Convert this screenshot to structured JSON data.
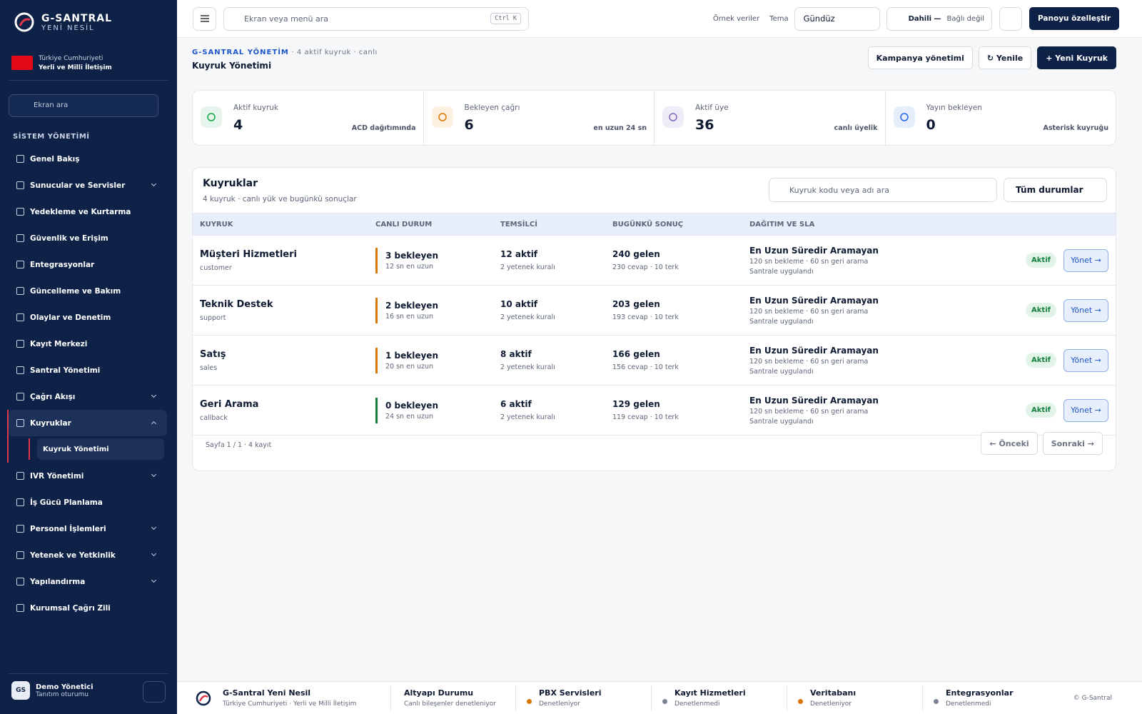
{
  "sidebar": {
    "brand": "G-SANTRAL",
    "brand_sub": "YENİ NESİL",
    "country": "Türkiye Cumhuriyeti",
    "motto": "Yerli ve Milli İletişim",
    "search_placeholder": "Ekran ara",
    "section": "SİSTEM YÖNETİMİ",
    "nav": [
      {
        "label": "Genel Bakış"
      },
      {
        "label": "Sunucular ve Servisler",
        "expandable": true
      },
      {
        "label": "Yedekleme ve Kurtarma"
      },
      {
        "label": "Güvenlik ve Erişim"
      },
      {
        "label": "Entegrasyonlar"
      },
      {
        "label": "Güncelleme ve Bakım"
      },
      {
        "label": "Olaylar ve Denetim"
      },
      {
        "label": "Kayıt Merkezi"
      },
      {
        "label": "Santral Yönetimi"
      },
      {
        "label": "Çağrı Akışı",
        "expandable": true
      },
      {
        "label": "Kuyruklar",
        "expandable": true,
        "expanded": true,
        "active": true,
        "children": [
          "Kuyruk Yönetimi"
        ]
      },
      {
        "label": "IVR Yönetimi",
        "expandable": true
      },
      {
        "label": "İş Gücü Planlama"
      },
      {
        "label": "Personel İşlemleri",
        "expandable": true
      },
      {
        "label": "Yetenek ve Yetkinlik",
        "expandable": true
      },
      {
        "label": "Yapılandırma",
        "expandable": true
      },
      {
        "label": "Kurumsal Çağrı Zili"
      }
    ],
    "user": {
      "initials": "GS",
      "name": "Demo Yönetici",
      "role": "Tanıtım oturumu"
    }
  },
  "topbar": {
    "search_placeholder": "Ekran veya menü ara",
    "shortcut": "Ctrl K",
    "sample_data": "Örnek veriler",
    "theme_label": "Tema",
    "theme_value": "Gündüz",
    "extension_label": "Dahili —",
    "extension_status": "Bağlı değil",
    "customize": "Panoyu özelleştir"
  },
  "header": {
    "breadcrumb": "G-SANTRAL YÖNETİM",
    "meta": "4 aktif kuyruk · canlı",
    "title": "Kuyruk Yönetimi",
    "buttons": [
      "Kampanya yönetimi",
      "↻ Yenile",
      "+ Yeni Kuyruk"
    ]
  },
  "stats": [
    {
      "label": "Aktif kuyruk",
      "value": "4",
      "note": "ACD dağıtımında",
      "color": "#16a34a",
      "bg": "#e7f6ec"
    },
    {
      "label": "Bekleyen çağrı",
      "value": "6",
      "note": "en uzun 24 sn",
      "color": "#d97706",
      "bg": "#fdf0e1"
    },
    {
      "label": "Aktif üye",
      "value": "36",
      "note": "canlı üyelik",
      "color": "#7c6bb5",
      "bg": "#efecf8"
    },
    {
      "label": "Yayın bekleyen",
      "value": "0",
      "note": "Asterisk kuyruğu",
      "color": "#2563eb",
      "bg": "#e6eefc"
    }
  ],
  "table": {
    "title": "Kuyruklar",
    "subtitle": "4 kuyruk · canlı yük ve bugünkü sonuçlar",
    "search_placeholder": "Kuyruk kodu veya adı ara",
    "filter": "Tüm durumlar",
    "columns": [
      "KUYRUK",
      "CANLI DURUM",
      "TEMSİLCİ",
      "BUGÜNKÜ SONUÇ",
      "DAĞITIM VE SLA"
    ],
    "rows": [
      {
        "name": "Müşteri Hizmetleri",
        "code": "customer",
        "waiting": "3 bekleyen",
        "longest": "12 sn en uzun",
        "bar_color": "#d97706",
        "agents": "12 aktif",
        "rules": "2 yetenek kuralı",
        "incoming": "240 gelen",
        "outcome": "230 cevap · 10 terk",
        "strategy": "En Uzun Süredir Aramayan",
        "sla": "120 sn bekleme · 60 sn geri arama",
        "applied": "Santrale uygulandı",
        "status": "Aktif",
        "action": "Yönet →"
      },
      {
        "name": "Teknik Destek",
        "code": "support",
        "waiting": "2 bekleyen",
        "longest": "16 sn en uzun",
        "bar_color": "#d97706",
        "agents": "10 aktif",
        "rules": "2 yetenek kuralı",
        "incoming": "203 gelen",
        "outcome": "193 cevap · 10 terk",
        "strategy": "En Uzun Süredir Aramayan",
        "sla": "120 sn bekleme · 60 sn geri arama",
        "applied": "Santrale uygulandı",
        "status": "Aktif",
        "action": "Yönet →"
      },
      {
        "name": "Satış",
        "code": "sales",
        "waiting": "1 bekleyen",
        "longest": "20 sn en uzun",
        "bar_color": "#d97706",
        "agents": "8 aktif",
        "rules": "2 yetenek kuralı",
        "incoming": "166 gelen",
        "outcome": "156 cevap · 10 terk",
        "strategy": "En Uzun Süredir Aramayan",
        "sla": "120 sn bekleme · 60 sn geri arama",
        "applied": "Santrale uygulandı",
        "status": "Aktif",
        "action": "Yönet →"
      },
      {
        "name": "Geri Arama",
        "code": "callback",
        "waiting": "0 bekleyen",
        "longest": "24 sn en uzun",
        "bar_color": "#15803d",
        "agents": "6 aktif",
        "rules": "2 yetenek kuralı",
        "incoming": "129 gelen",
        "outcome": "119 cevap · 10 terk",
        "strategy": "En Uzun Süredir Aramayan",
        "sla": "120 sn bekleme · 60 sn geri arama",
        "applied": "Santrale uygulandı",
        "status": "Aktif",
        "action": "Yönet →"
      }
    ],
    "pagination": {
      "info": "Sayfa 1 / 1 · 4 kayıt",
      "prev": "← Önceki",
      "next": "Sonraki →"
    }
  },
  "footer": {
    "brand": "G-Santral Yeni Nesil",
    "brand_sub": "Türkiye Cumhuriyeti · Yerli ve Milli İletişim",
    "infra_title": "Altyapı Durumu",
    "infra_sub": "Canlı bileşenler denetleniyor",
    "services": [
      {
        "name": "PBX Servisleri",
        "state": "Denetleniyor",
        "color": "#d97706"
      },
      {
        "name": "Kayıt Hizmetleri",
        "state": "Denetlenmedi",
        "color": "#7b8494"
      },
      {
        "name": "Veritabanı",
        "state": "Denetleniyor",
        "color": "#d97706"
      },
      {
        "name": "Entegrasyonlar",
        "state": "Denetlenmedi",
        "color": "#7b8494"
      }
    ],
    "copyright": "© G-Santral"
  }
}
